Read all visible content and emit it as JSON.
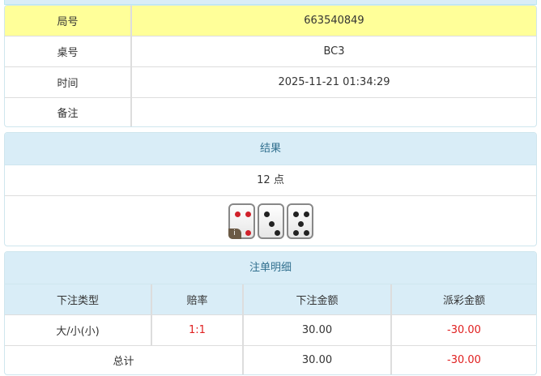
{
  "info": {
    "rows": [
      {
        "label": "局号",
        "value": "663540849"
      },
      {
        "label": "桌号",
        "value": "BC3"
      },
      {
        "label": "时间",
        "value": "2025-11-21 01:34:29"
      },
      {
        "label": "备注",
        "value": ""
      }
    ]
  },
  "result": {
    "title": "结果",
    "points": "12 点",
    "dice": [
      4,
      3,
      5
    ],
    "badge": "i",
    "colors": {
      "red_pip": "#d0202a",
      "black_pip": "#222222"
    }
  },
  "bets": {
    "title": "注单明细",
    "headers": [
      "下注类型",
      "赔率",
      "下注金额",
      "派彩金额"
    ],
    "rows": [
      {
        "type": "大/小(小)",
        "odds": "1:1",
        "amount": "30.00",
        "payout": "-30.00"
      }
    ],
    "total": {
      "label": "总计",
      "amount": "30.00",
      "payout": "-30.00"
    }
  },
  "colors": {
    "header_bg": "#d9edf7",
    "highlight": "#ffff99",
    "negative": "#e02020"
  }
}
